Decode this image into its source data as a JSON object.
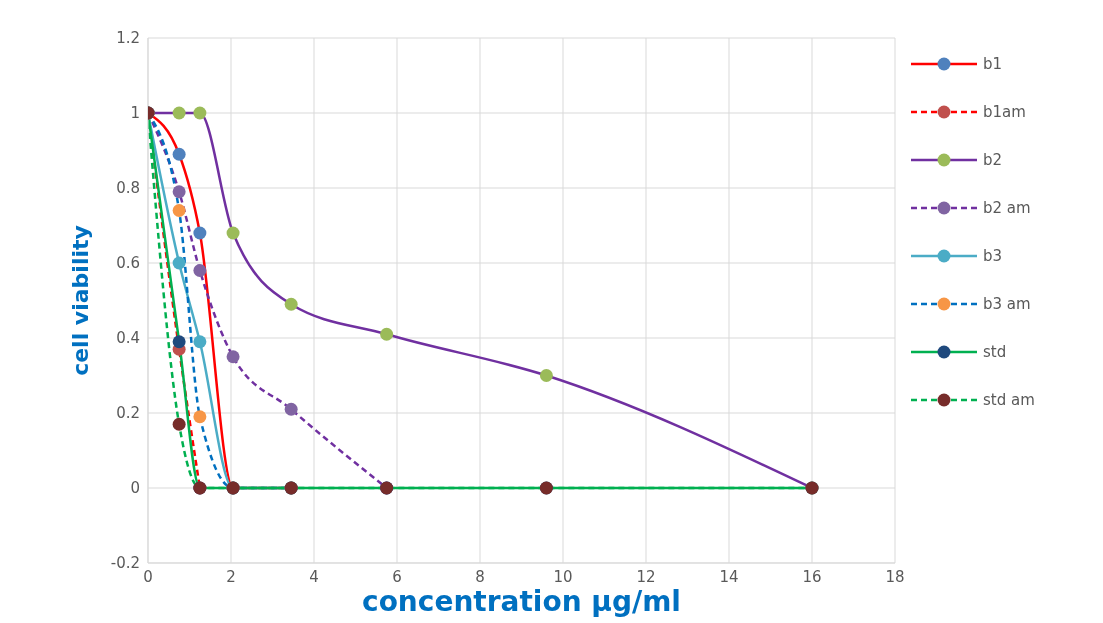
{
  "chart_data": {
    "type": "line",
    "xlabel": "concentration μg/ml",
    "ylabel": "cell viability",
    "x": [
      0,
      0.75,
      1.25,
      2.05,
      3.45,
      5.75,
      9.6,
      16
    ],
    "xlim": [
      0,
      18
    ],
    "xticks": [
      0,
      2,
      4,
      6,
      8,
      10,
      12,
      14,
      16,
      18
    ],
    "ylim": [
      -0.2,
      1.2
    ],
    "yticks": [
      -0.2,
      0,
      0.2,
      0.4,
      0.6,
      0.8,
      1,
      1.2
    ],
    "grid": true,
    "legend": "top right",
    "marker": "circle",
    "series": [
      {
        "name": "b1",
        "color": "#ff0000",
        "line_style": "solid",
        "colors": [
          "#4f81bd",
          "#4f81bd",
          "#4f81bd",
          "#4f81bd",
          "#4f81bd",
          "#4f81bd",
          "#4f81bd",
          "#4f81bd"
        ],
        "values": [
          1,
          0.89,
          0.68,
          0,
          0,
          null,
          null,
          null
        ]
      },
      {
        "name": "b1am",
        "color": "#ff0000",
        "line_style": "dashed",
        "colors": [
          "#c0504d",
          "#c0504d",
          "#c0504d",
          "#c0504d",
          "#c0504d",
          "#c0504d",
          "#c0504d",
          "#c0504d"
        ],
        "values": [
          1,
          0.37,
          0,
          null,
          null,
          null,
          null,
          null
        ]
      },
      {
        "name": "b2",
        "color": "#7030a0",
        "line_style": "solid",
        "colors": [
          "#9bbb59",
          "#9bbb59",
          "#9bbb59",
          "#9bbb59",
          "#9bbb59",
          "#9bbb59",
          "#9bbb59",
          "#9bbb59"
        ],
        "values": [
          1,
          1,
          1,
          0.68,
          0.49,
          0.41,
          0.3,
          0
        ]
      },
      {
        "name": "b2 am",
        "color": "#7030a0",
        "line_style": "dashed",
        "colors": [
          "#8064a2",
          "#8064a2",
          "#8064a2",
          "#8064a2",
          "#8064a2",
          "#8064a2",
          "#8064a2",
          "#8064a2"
        ],
        "values": [
          1,
          0.79,
          0.58,
          0.35,
          0.21,
          0,
          null,
          null
        ]
      },
      {
        "name": "b3",
        "color": "#4bacc6",
        "line_style": "solid",
        "colors": [
          "#4bacc6",
          "#4bacc6",
          "#4bacc6",
          "#4bacc6",
          "#4bacc6",
          "#4bacc6",
          "#4bacc6",
          "#4bacc6"
        ],
        "values": [
          1,
          0.6,
          0.39,
          0,
          0,
          null,
          null,
          null
        ]
      },
      {
        "name": "b3 am",
        "color": "#0070c0",
        "line_style": "dashed",
        "colors": [
          "#f79646",
          "#f79646",
          "#f79646",
          "#f79646",
          "#f79646",
          "#f79646",
          "#f79646",
          "#f79646"
        ],
        "values": [
          1,
          0.74,
          0.19,
          0,
          0,
          null,
          null,
          null
        ]
      },
      {
        "name": "std",
        "color": "#00b050",
        "line_style": "solid",
        "colors": [
          "#1f497d",
          "#1f497d",
          "#1f497d",
          "#1f497d",
          "#1f497d",
          "#1f497d",
          "#1f497d",
          "#1f497d"
        ],
        "values": [
          1,
          0.39,
          0,
          0,
          0,
          0,
          0,
          0
        ]
      },
      {
        "name": "std am",
        "color": "#00b050",
        "line_style": "dashed",
        "colors": [
          "#772c2a",
          "#772c2a",
          "#772c2a",
          "#772c2a",
          "#772c2a",
          "#772c2a",
          "#772c2a",
          "#772c2a"
        ],
        "values": [
          1,
          0.17,
          0,
          0,
          0,
          0,
          0,
          0
        ]
      }
    ]
  }
}
